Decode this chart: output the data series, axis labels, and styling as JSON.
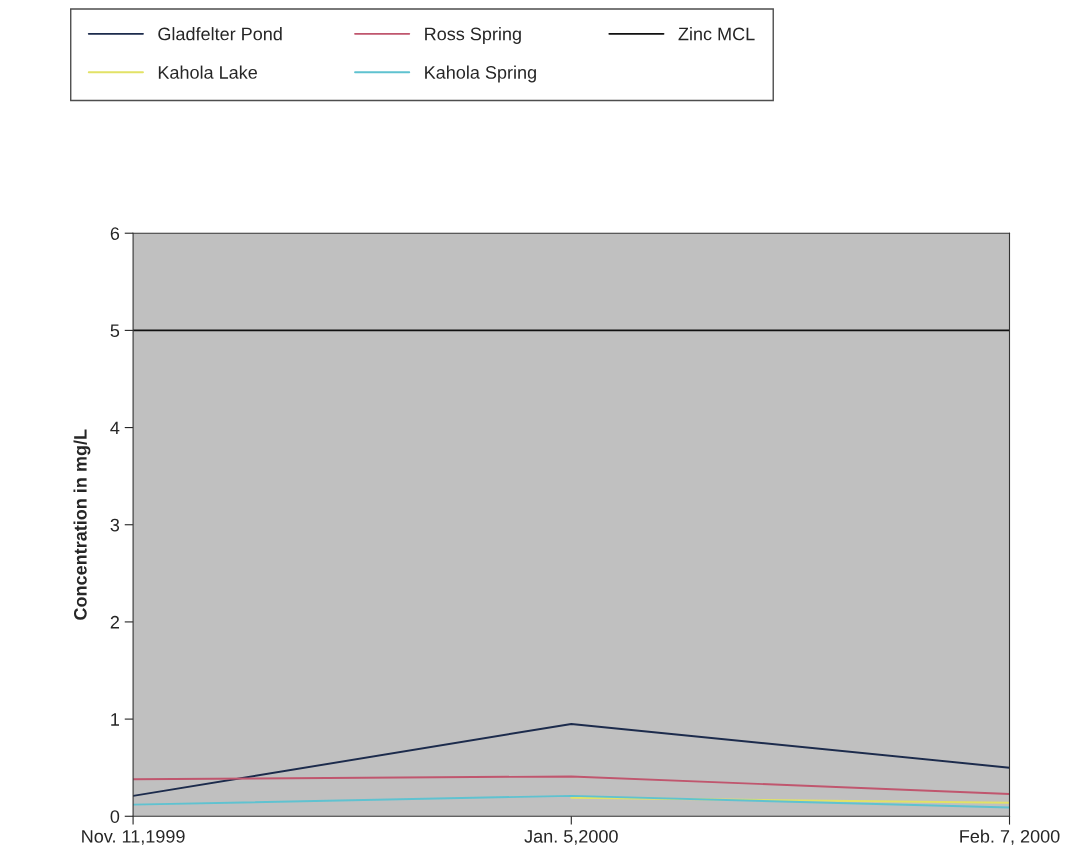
{
  "chart_data": {
    "type": "line",
    "ylabel": "Concentration in mg/L",
    "categories": [
      "Nov. 11,1999",
      "Jan. 5,2000",
      "Feb. 7, 2000"
    ],
    "series": [
      {
        "name": "Gladfelter Pond",
        "color": "#1c2b4c",
        "values": [
          0.21,
          0.95,
          0.5
        ]
      },
      {
        "name": "Kahola Lake",
        "color": "#e2e266",
        "values": [
          null,
          0.19,
          0.14
        ]
      },
      {
        "name": "Ross Spring",
        "color": "#c0566e",
        "values": [
          0.38,
          0.41,
          0.23
        ]
      },
      {
        "name": "Kahola Spring",
        "color": "#5fc2d0",
        "values": [
          0.12,
          0.21,
          0.09
        ]
      },
      {
        "name": "Zinc MCL",
        "color": "#111111",
        "values": [
          5,
          5,
          5
        ]
      }
    ],
    "ylim": [
      0,
      6
    ],
    "yticks": [
      0,
      1,
      2,
      3,
      4,
      5,
      6
    ],
    "grid": false,
    "legend": "top",
    "marker": "none",
    "line_style": "solid"
  }
}
